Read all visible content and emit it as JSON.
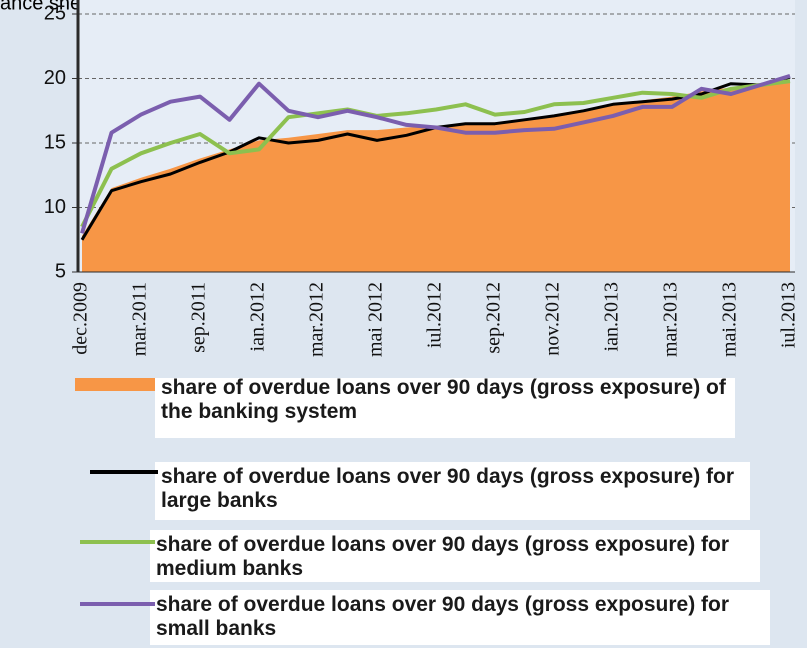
{
  "chart_data": {
    "type": "line",
    "caption": "ance sheets.",
    "categories": [
      "dec.2009",
      null,
      "mar.2011",
      null,
      "sep.2011",
      null,
      "ian.2012",
      null,
      "mar.2012",
      null,
      "mai 2012",
      null,
      "iul.2012",
      null,
      "sep.2012",
      null,
      "nov.2012",
      null,
      "ian.2013",
      null,
      "mar.2013",
      null,
      "mai.2013",
      null,
      "iul.2013"
    ],
    "ylim": [
      5,
      25
    ],
    "yticks": [
      5,
      10,
      15,
      20,
      25
    ],
    "grid": true,
    "series": [
      {
        "name": "share of overdue loans over 90 days (gross exposure) of the banking system",
        "color": "#f79646",
        "style": "area",
        "values": [
          7.8,
          11.5,
          12.3,
          13,
          13.8,
          14.5,
          15.2,
          15.4,
          15.7,
          16,
          16,
          16.2,
          16.3,
          16.5,
          16.6,
          16.8,
          17.2,
          17.6,
          18,
          18.3,
          18.6,
          19,
          19.3,
          19.6,
          19.9
        ]
      },
      {
        "name": "share of overdue loans over 90 days (gross exposure) for large banks",
        "color": "#000000",
        "style": "line",
        "values": [
          7.5,
          11.3,
          12,
          12.6,
          13.5,
          14.3,
          15.4,
          15,
          15.2,
          15.7,
          15.2,
          15.6,
          16.2,
          16.5,
          16.5,
          16.8,
          17.1,
          17.5,
          18,
          18.2,
          18.4,
          18.8,
          19.6,
          19.5,
          20.1
        ]
      },
      {
        "name": "share of overdue loans over 90 days (gross exposure) for medium banks",
        "color": "#8dc04f",
        "style": "line",
        "values": [
          8.5,
          13,
          14.2,
          15,
          15.7,
          14.2,
          14.5,
          17,
          17.3,
          17.6,
          17.1,
          17.3,
          17.6,
          18,
          17.2,
          17.4,
          18,
          18.1,
          18.5,
          18.9,
          18.8,
          18.5,
          19.2,
          19.5,
          19.8
        ]
      },
      {
        "name": "share of overdue loans over 90 days (gross exposure) for small banks",
        "color": "#7b5eae",
        "style": "line",
        "values": [
          8,
          15.8,
          17.2,
          18.2,
          18.6,
          16.8,
          19.6,
          17.5,
          17,
          17.5,
          17,
          16.4,
          16.2,
          15.8,
          15.8,
          16,
          16.1,
          16.6,
          17.1,
          17.8,
          17.8,
          19.2,
          18.8,
          19.5,
          20.2
        ]
      }
    ]
  }
}
